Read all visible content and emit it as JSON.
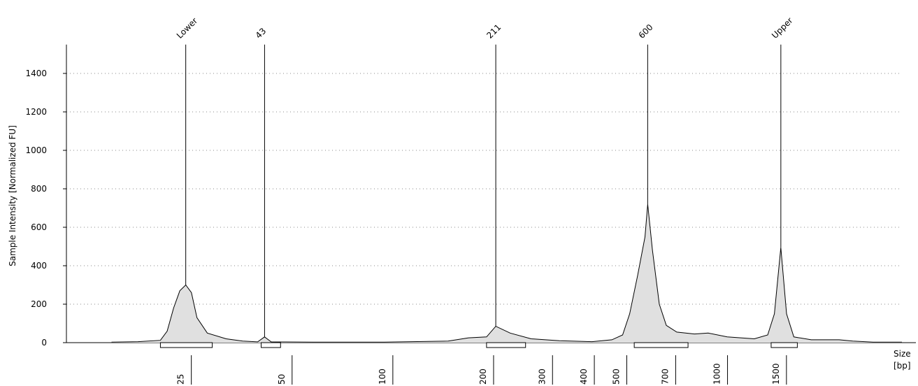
{
  "chart_data": {
    "type": "line",
    "y_label": "Sample Intensity [Normalized FU]",
    "x_label": "Size [bp]",
    "xscale": "log",
    "xlim": [
      11,
      3450
    ],
    "xticks": [
      25,
      50,
      100,
      200,
      300,
      400,
      500,
      700,
      1000,
      1500
    ],
    "ylim": [
      0,
      1550
    ],
    "yticks": [
      0,
      200,
      400,
      600,
      800,
      1000,
      1200,
      1400
    ],
    "grid": true,
    "color": "#000000",
    "fill": "#e0e0e0",
    "trace": {
      "x": [
        15,
        18,
        21,
        22,
        23,
        24,
        25,
        26,
        27,
        29,
        33,
        37,
        41,
        43,
        45,
        60,
        98,
        152,
        175,
        198,
        211,
        233,
        269,
        327,
        409,
        469,
        505,
        530,
        560,
        589,
        600,
        620,
        650,
        682,
        733,
        828,
        910,
        1037,
        1250,
        1370,
        1435,
        1500,
        1560,
        1640,
        1850,
        2240,
        2460,
        2830,
        3450
      ],
      "values": [
        3,
        5,
        12,
        60,
        180,
        270,
        300,
        260,
        130,
        50,
        20,
        8,
        4,
        30,
        4,
        3,
        3,
        8,
        25,
        30,
        85,
        50,
        20,
        10,
        5,
        15,
        40,
        150,
        350,
        550,
        720,
        480,
        200,
        90,
        55,
        45,
        50,
        30,
        20,
        40,
        150,
        495,
        150,
        30,
        15,
        15,
        8,
        3,
        3
      ]
    },
    "peaks": [
      {
        "label": "Lower",
        "size": 25,
        "height": 300
      },
      {
        "label": "43",
        "size": 43,
        "height": 30
      },
      {
        "label": "211",
        "size": 211,
        "height": 85
      },
      {
        "label": "600",
        "size": 600,
        "height": 720
      },
      {
        "label": "Upper",
        "size": 1500,
        "height": 495
      }
    ],
    "regions": [
      [
        21,
        30
      ],
      [
        42,
        48
      ],
      [
        198,
        259
      ],
      [
        547,
        792
      ],
      [
        1403,
        1680
      ]
    ]
  }
}
